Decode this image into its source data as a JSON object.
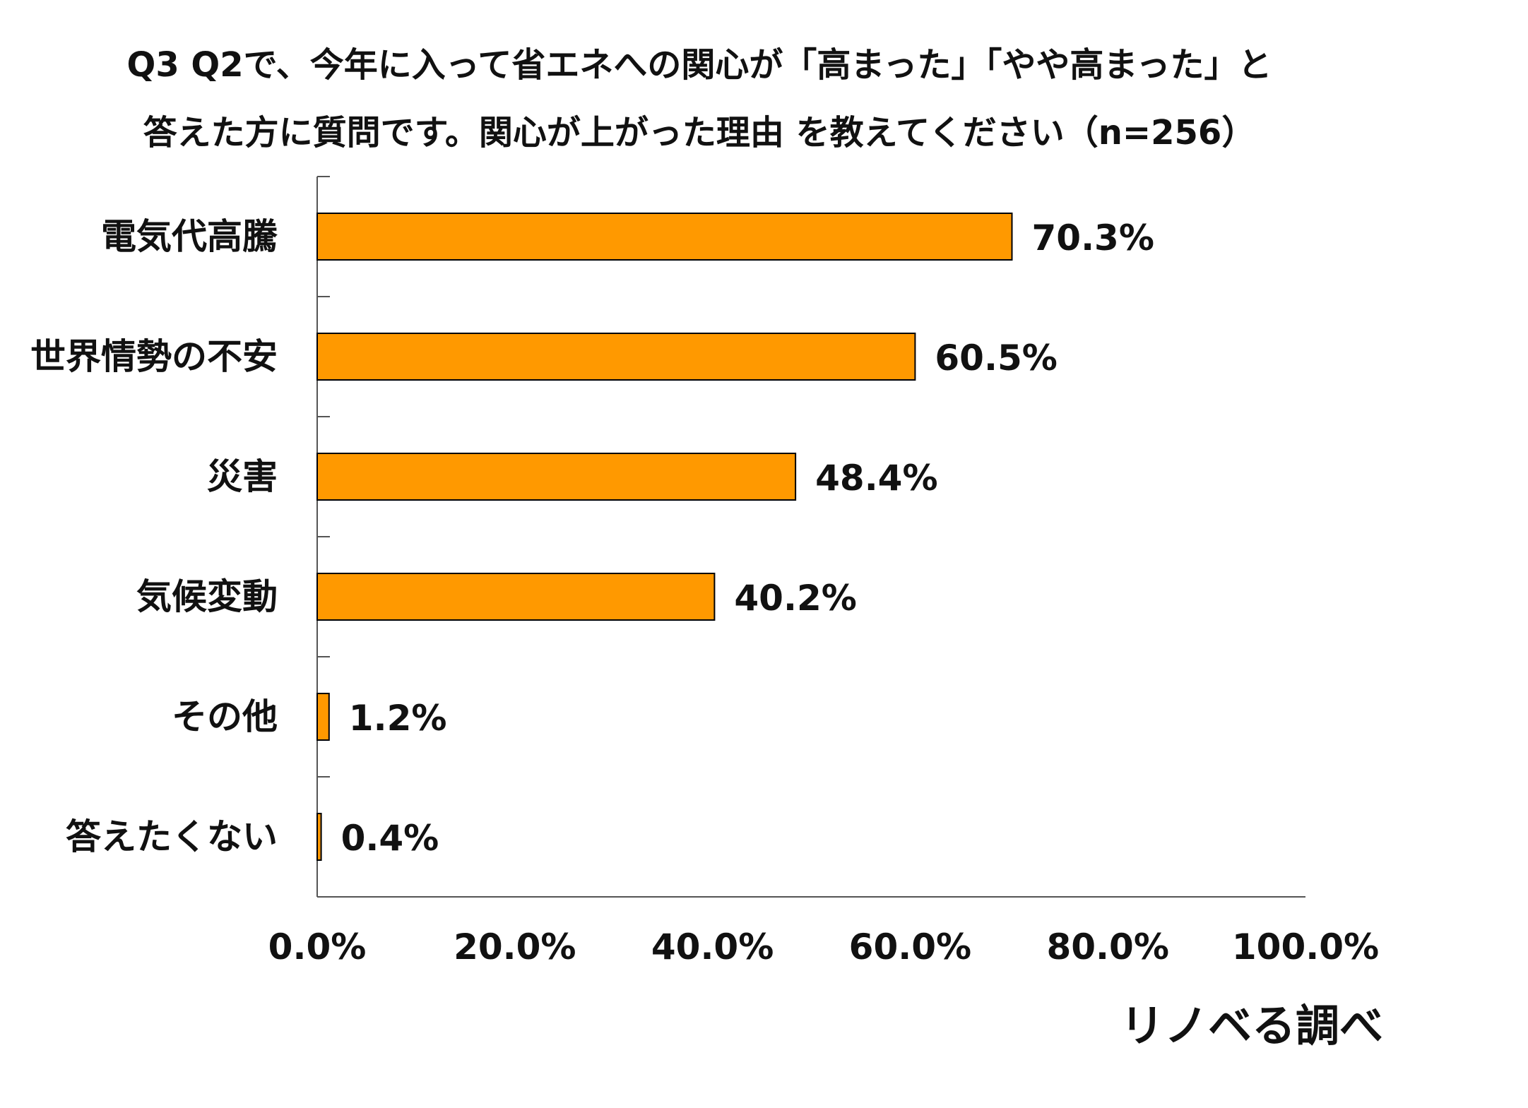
{
  "chart_data": {
    "type": "bar",
    "orientation": "horizontal",
    "title_line1": "Q3 Q2で、今年に入って省エネへの関心が「高まった」「やや高まった」と",
    "title_line2": "答えた方に質問です。関心が上がった理由 を教えてください（n=256）",
    "categories": [
      "電気代高騰",
      "世界情勢の不安",
      "災害",
      "気候変動",
      "その他",
      "答えたくない"
    ],
    "values": [
      70.3,
      60.5,
      48.4,
      40.2,
      1.2,
      0.4
    ],
    "value_labels": [
      "70.3%",
      "60.5%",
      "48.4%",
      "40.2%",
      "1.2%",
      "0.4%"
    ],
    "xlim": [
      0,
      100
    ],
    "xticks": [
      0,
      20,
      40,
      60,
      80,
      100
    ],
    "xtick_labels": [
      "0.0%",
      "20.0%",
      "40.0%",
      "60.0%",
      "80.0%",
      "100.0%"
    ],
    "grid": false,
    "legend": "none",
    "bar_color": "#FF9900",
    "bar_edge_color": "#000000"
  },
  "source": "リノベる調べ"
}
